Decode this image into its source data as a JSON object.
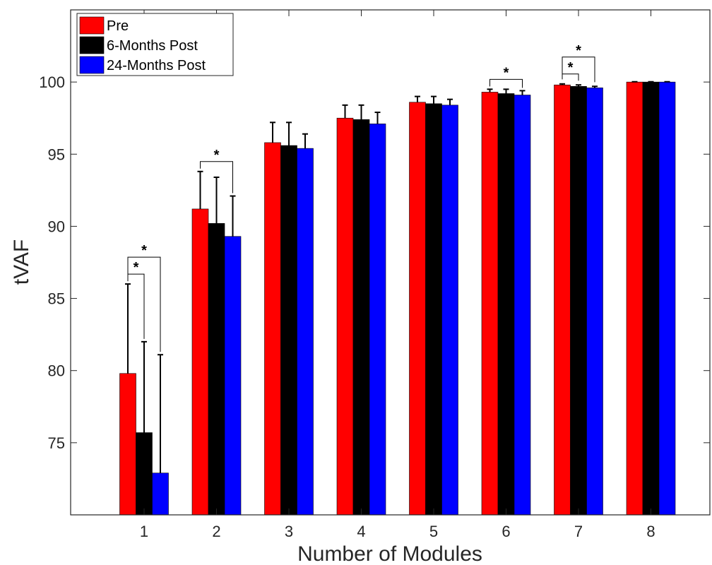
{
  "chart_data": {
    "type": "bar",
    "title": "",
    "xlabel": "Number of Modules",
    "ylabel": "tVAF",
    "categories": [
      "1",
      "2",
      "3",
      "4",
      "5",
      "6",
      "7",
      "8"
    ],
    "ylim": [
      70,
      105
    ],
    "yticks": [
      "75",
      "80",
      "85",
      "90",
      "95",
      "100"
    ],
    "grid": false,
    "legend_position": "top-left",
    "series": [
      {
        "name": "Pre",
        "color": "#ff0000",
        "values": [
          79.8,
          91.2,
          95.8,
          97.5,
          98.6,
          99.3,
          99.8,
          100.0
        ],
        "errors": [
          6.2,
          2.6,
          1.4,
          0.9,
          0.4,
          0.2,
          0.07,
          0.02
        ]
      },
      {
        "name": "6-Months Post",
        "color": "#000000",
        "values": [
          75.7,
          90.2,
          95.6,
          97.4,
          98.5,
          99.2,
          99.7,
          100.0
        ],
        "errors": [
          6.3,
          3.2,
          1.6,
          1.0,
          0.5,
          0.3,
          0.1,
          0.02
        ]
      },
      {
        "name": "24-Months Post",
        "color": "#0000ff",
        "values": [
          72.9,
          89.3,
          95.4,
          97.1,
          98.4,
          99.1,
          99.6,
          100.0
        ],
        "errors": [
          8.2,
          2.8,
          1.0,
          0.8,
          0.4,
          0.3,
          0.1,
          0.02
        ]
      }
    ],
    "annotations": [
      {
        "category": "1",
        "from_series": 0,
        "to_series": 1,
        "text": "*"
      },
      {
        "category": "1",
        "from_series": 0,
        "to_series": 2,
        "text": "*"
      },
      {
        "category": "2",
        "from_series": 0,
        "to_series": 2,
        "text": "*"
      },
      {
        "category": "6",
        "from_series": 0,
        "to_series": 2,
        "text": "*"
      },
      {
        "category": "7",
        "from_series": 0,
        "to_series": 1,
        "text": "*"
      },
      {
        "category": "7",
        "from_series": 0,
        "to_series": 2,
        "text": "*"
      }
    ]
  }
}
